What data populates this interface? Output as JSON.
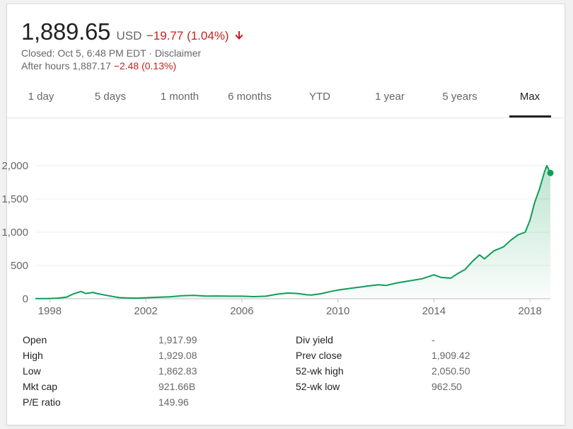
{
  "quote": {
    "price": "1,889.65",
    "currency": "USD",
    "change": "−19.77 (1.04%)",
    "direction_icon": "arrow-down-icon",
    "closed_prefix": "Closed: Oct 5, 6:48 PM EDT · ",
    "disclaimer": "Disclaimer",
    "after_hours_label": "After hours 1,887.17",
    "after_hours_change": "−2.48 (0.13%)",
    "negative_color": "#c5221f"
  },
  "tabs": [
    {
      "label": "1 day"
    },
    {
      "label": "5 days"
    },
    {
      "label": "1 month"
    },
    {
      "label": "6 months"
    },
    {
      "label": "YTD"
    },
    {
      "label": "1 year"
    },
    {
      "label": "5 years"
    },
    {
      "label": "Max",
      "selected": true
    }
  ],
  "chart_data": {
    "type": "area",
    "title": "",
    "xlabel": "",
    "ylabel": "",
    "x_ticks": [
      "1998",
      "2002",
      "2006",
      "2010",
      "2014",
      "2018"
    ],
    "y_ticks": [
      "2,000",
      "1,500",
      "1,000",
      "500",
      "0"
    ],
    "ylim": [
      0,
      2000
    ],
    "xlim": [
      1997.4,
      2018.85
    ],
    "grid": true,
    "line_color": "#0f9d58",
    "series": [
      {
        "x": [
          1997.4,
          1997.9,
          1998.3,
          1998.7,
          1999.0,
          1999.3,
          1999.5,
          1999.8,
          2000.0,
          2000.3,
          2000.6,
          2000.9,
          2001.2,
          2001.6,
          2002.0,
          2002.5,
          2003.0,
          2003.5,
          2004.0,
          2004.5,
          2005.0,
          2005.5,
          2006.0,
          2006.5,
          2007.0,
          2007.5,
          2007.9,
          2008.3,
          2008.7,
          2008.9,
          2009.3,
          2009.7,
          2010.0,
          2010.5,
          2010.9,
          2011.3,
          2011.7,
          2012.0,
          2012.5,
          2013.0,
          2013.5,
          2014.0,
          2014.3,
          2014.7,
          2015.0,
          2015.3,
          2015.6,
          2015.9,
          2016.1,
          2016.5,
          2016.9,
          2017.2,
          2017.5,
          2017.8,
          2018.0,
          2018.2,
          2018.4,
          2018.6,
          2018.7,
          2018.85
        ],
        "y": [
          2,
          3,
          7,
          25,
          75,
          110,
          80,
          95,
          75,
          55,
          35,
          17,
          12,
          10,
          15,
          22,
          30,
          45,
          50,
          40,
          42,
          38,
          38,
          32,
          38,
          70,
          85,
          80,
          60,
          55,
          75,
          110,
          130,
          155,
          175,
          195,
          210,
          200,
          240,
          270,
          300,
          360,
          320,
          310,
          380,
          440,
          560,
          660,
          600,
          720,
          780,
          880,
          960,
          1000,
          1180,
          1450,
          1650,
          1900,
          2000,
          1890
        ]
      }
    ]
  },
  "stats": {
    "left": [
      {
        "label": "Open",
        "value": "1,917.99"
      },
      {
        "label": "High",
        "value": "1,929.08"
      },
      {
        "label": "Low",
        "value": "1,862.83"
      },
      {
        "label": "Mkt cap",
        "value": "921.66B"
      },
      {
        "label": "P/E ratio",
        "value": "149.96"
      }
    ],
    "right": [
      {
        "label": "Div yield",
        "value": "-"
      },
      {
        "label": "Prev close",
        "value": "1,909.42"
      },
      {
        "label": "52-wk high",
        "value": "2,050.50"
      },
      {
        "label": "52-wk low",
        "value": "962.50"
      }
    ]
  }
}
